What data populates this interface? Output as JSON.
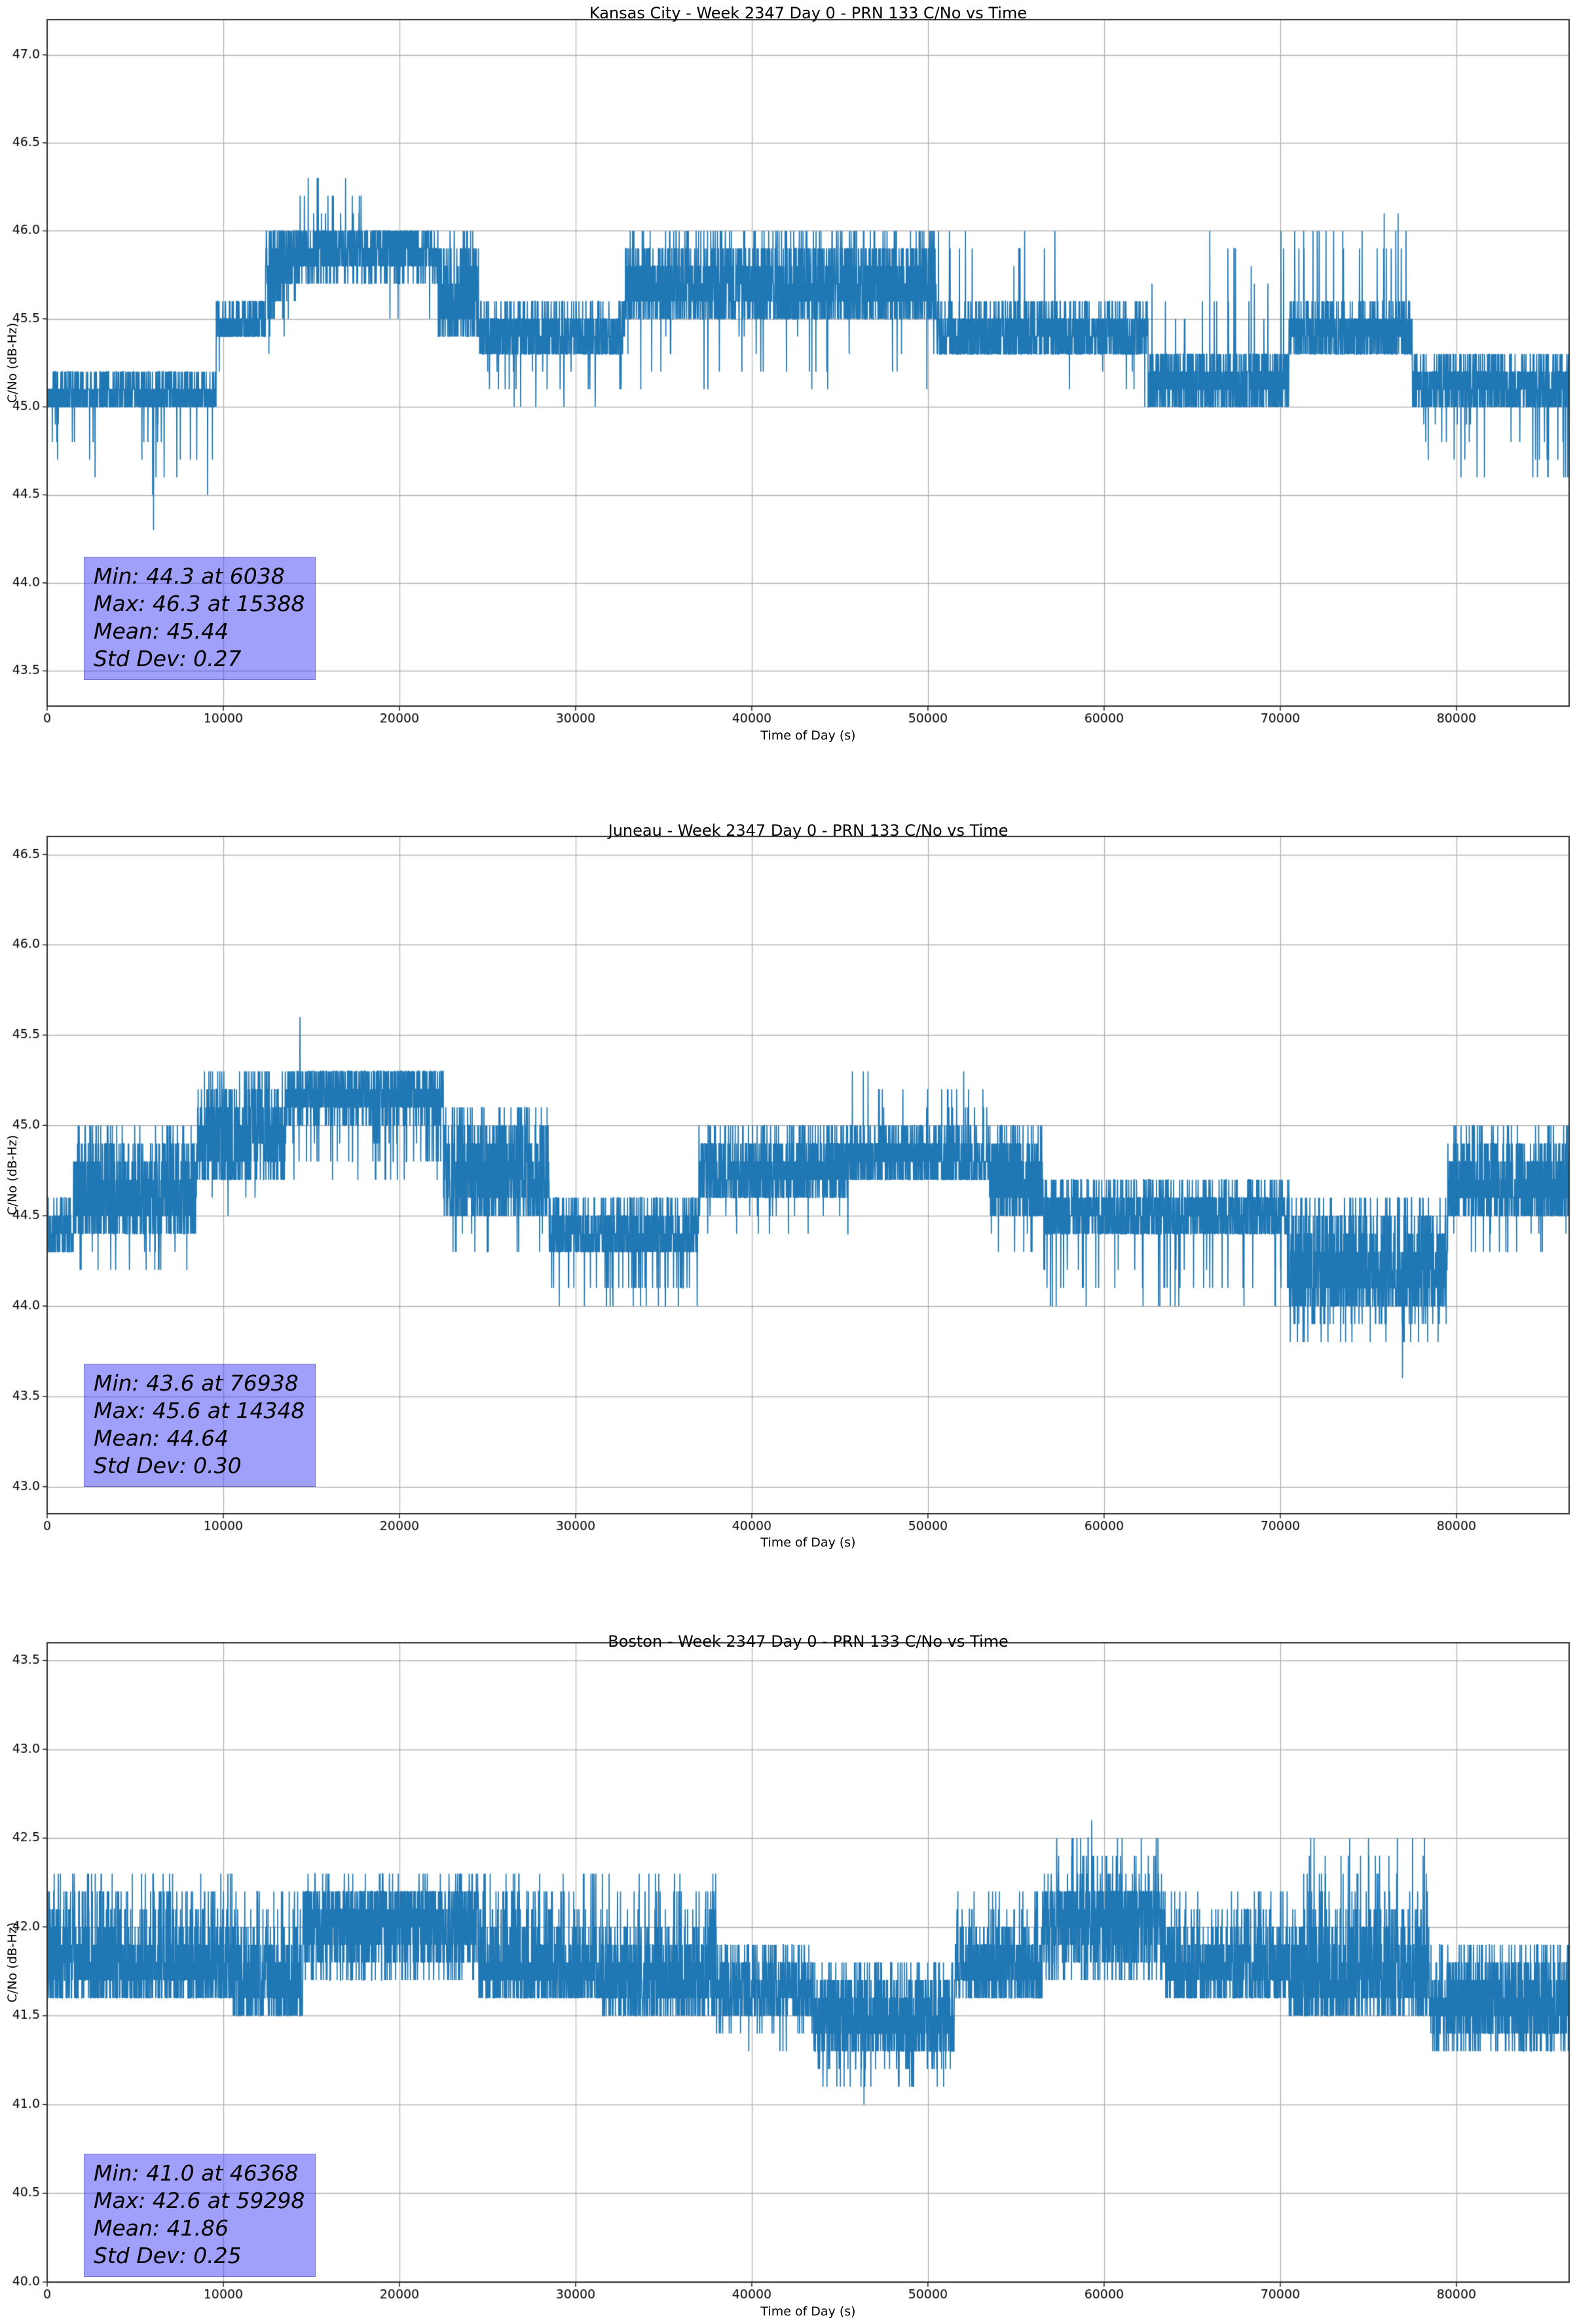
{
  "page": {
    "background": "#ffffff"
  },
  "chart_data": [
    {
      "type": "line",
      "title": "Kansas City - Week 2347 Day 0 - PRN 133 C/No vs Time",
      "xlabel": "Time of Day (s)",
      "ylabel": "C/No (dB-Hz)",
      "line_color": "#1f77b4",
      "grid": true,
      "legend": null,
      "xlim": [
        0,
        86400
      ],
      "ylim": [
        43.3,
        47.2
      ],
      "xticks": [
        0,
        10000,
        20000,
        30000,
        40000,
        50000,
        60000,
        70000,
        80000
      ],
      "yticks": [
        "43.5",
        "44.0",
        "44.5",
        "45.0",
        "45.5",
        "46.0",
        "46.5",
        "47.0"
      ],
      "stats": {
        "min": 44.3,
        "min_time_s": 6038,
        "max": 46.3,
        "max_time_s": 15388,
        "mean": 45.44,
        "std_dev": 0.27
      },
      "stats_lines": [
        "Min: 44.3 at 6038",
        "Max: 46.3 at 15388",
        "Mean: 45.44",
        "Std Dev: 0.27"
      ],
      "extremes": [
        {
          "t": 6038,
          "v": 44.3
        },
        {
          "t": 15388,
          "v": 46.3
        }
      ],
      "sample_interval_s": 10,
      "quantization_db": 0.1,
      "segments_schema": [
        "t_start",
        "t_end",
        "band_low",
        "band_high",
        "bias_high",
        "spike_prob",
        "spike_low",
        "spike_high"
      ],
      "segments": [
        [
          0,
          2600,
          45.0,
          45.2,
          0,
          0.04,
          44.6,
          44.9
        ],
        [
          2600,
          9600,
          45.0,
          45.2,
          0,
          0.025,
          44.5,
          44.9
        ],
        [
          9600,
          12400,
          45.4,
          45.6,
          0,
          0.01,
          45.2,
          45.35
        ],
        [
          12400,
          14200,
          45.5,
          46.0,
          1,
          0.02,
          45.3,
          45.5
        ],
        [
          14200,
          18400,
          45.7,
          46.0,
          1,
          0.02,
          46.05,
          46.3
        ],
        [
          18400,
          22200,
          45.7,
          46.0,
          1,
          0.015,
          45.4,
          45.6
        ],
        [
          22200,
          24500,
          45.4,
          46.0,
          0,
          0,
          0,
          0
        ],
        [
          24500,
          32800,
          45.3,
          45.6,
          0,
          0.04,
          45.0,
          45.2
        ],
        [
          32800,
          50500,
          45.5,
          46.0,
          0,
          0.015,
          45.1,
          45.4
        ],
        [
          50500,
          57500,
          45.3,
          45.6,
          0,
          0.02,
          45.8,
          46.0
        ],
        [
          57500,
          62500,
          45.3,
          45.6,
          0,
          0.01,
          45.0,
          45.2
        ],
        [
          62500,
          70500,
          45.0,
          45.35,
          0,
          0.03,
          45.5,
          46.0
        ],
        [
          70500,
          77500,
          45.3,
          45.6,
          0,
          0.03,
          45.8,
          46.1
        ],
        [
          77500,
          86400,
          45.0,
          45.3,
          0,
          0.05,
          44.6,
          44.9
        ]
      ]
    },
    {
      "type": "line",
      "title": "Juneau - Week 2347 Day 0 - PRN 133 C/No vs Time",
      "xlabel": "Time of Day (s)",
      "ylabel": "C/No (dB-Hz)",
      "line_color": "#1f77b4",
      "grid": true,
      "legend": null,
      "xlim": [
        0,
        86400
      ],
      "ylim": [
        42.85,
        46.6
      ],
      "xticks": [
        0,
        10000,
        20000,
        30000,
        40000,
        50000,
        60000,
        70000,
        80000
      ],
      "yticks": [
        "43.0",
        "43.5",
        "44.0",
        "44.5",
        "45.0",
        "45.5",
        "46.0",
        "46.5"
      ],
      "stats": {
        "min": 43.6,
        "min_time_s": 76938,
        "max": 45.6,
        "max_time_s": 14348,
        "mean": 44.64,
        "std_dev": 0.3
      },
      "stats_lines": [
        "Min: 43.6 at 76938",
        "Max: 45.6 at 14348",
        "Mean: 44.64",
        "Std Dev: 0.30"
      ],
      "extremes": [
        {
          "t": 76938,
          "v": 43.6
        },
        {
          "t": 14348,
          "v": 45.6
        }
      ],
      "sample_interval_s": 10,
      "quantization_db": 0.1,
      "segments_schema": [
        "t_start",
        "t_end",
        "band_low",
        "band_high",
        "bias_high",
        "spike_prob",
        "spike_low",
        "spike_high"
      ],
      "segments": [
        [
          0,
          1500,
          44.3,
          44.6,
          0,
          0,
          0,
          0
        ],
        [
          1500,
          8500,
          44.4,
          45.0,
          0,
          0.02,
          44.2,
          44.3
        ],
        [
          8500,
          13500,
          44.7,
          45.3,
          0,
          0.01,
          44.5,
          44.6
        ],
        [
          13500,
          22500,
          45.0,
          45.3,
          1,
          0.06,
          44.7,
          44.9
        ],
        [
          22500,
          28500,
          44.5,
          45.1,
          0,
          0.02,
          44.3,
          44.4
        ],
        [
          28500,
          37000,
          44.3,
          44.6,
          0,
          0.06,
          44.0,
          44.15
        ],
        [
          37000,
          45500,
          44.6,
          45.0,
          0,
          0.02,
          44.4,
          44.5
        ],
        [
          45500,
          53500,
          44.7,
          45.0,
          0,
          0.03,
          45.1,
          45.3
        ],
        [
          53500,
          56500,
          44.5,
          45.0,
          0,
          0.02,
          44.3,
          44.4
        ],
        [
          56500,
          70500,
          44.4,
          44.7,
          0,
          0.035,
          44.0,
          44.2
        ],
        [
          70500,
          79500,
          44.0,
          44.6,
          0,
          0.08,
          43.8,
          44.0
        ],
        [
          79500,
          86400,
          44.5,
          45.0,
          0,
          0.02,
          44.3,
          44.4
        ]
      ]
    },
    {
      "type": "line",
      "title": "Boston - Week 2347 Day 0 - PRN 133 C/No vs Time",
      "xlabel": "Time of Day (s)",
      "ylabel": "C/No (dB-Hz)",
      "line_color": "#1f77b4",
      "grid": true,
      "legend": null,
      "xlim": [
        0,
        86400
      ],
      "ylim": [
        40.0,
        43.6
      ],
      "xticks": [
        0,
        10000,
        20000,
        30000,
        40000,
        50000,
        60000,
        70000,
        80000
      ],
      "yticks": [
        "40.0",
        "40.5",
        "41.0",
        "41.5",
        "42.0",
        "42.5",
        "43.0",
        "43.5"
      ],
      "stats": {
        "min": 41.0,
        "min_time_s": 46368,
        "max": 42.6,
        "max_time_s": 59298,
        "mean": 41.86,
        "std_dev": 0.25
      },
      "stats_lines": [
        "Min: 41.0 at 46368",
        "Max: 42.6 at 59298",
        "Mean: 41.86",
        "Std Dev: 0.25"
      ],
      "extremes": [
        {
          "t": 46368,
          "v": 41.0
        },
        {
          "t": 59298,
          "v": 42.6
        }
      ],
      "sample_interval_s": 10,
      "quantization_db": 0.1,
      "segments_schema": [
        "t_start",
        "t_end",
        "band_low",
        "band_high",
        "bias_high",
        "spike_prob",
        "spike_low",
        "spike_high"
      ],
      "segments": [
        [
          0,
          10500,
          41.6,
          42.0,
          0,
          0.14,
          42.05,
          42.3
        ],
        [
          10500,
          14500,
          41.5,
          42.0,
          0,
          0.05,
          42.05,
          42.2
        ],
        [
          14500,
          24500,
          41.7,
          42.2,
          1,
          0.04,
          42.25,
          42.35
        ],
        [
          24500,
          31500,
          41.6,
          42.0,
          0,
          0.1,
          42.05,
          42.3
        ],
        [
          31500,
          38000,
          41.5,
          42.0,
          0,
          0.07,
          42.05,
          42.3
        ],
        [
          38000,
          43500,
          41.5,
          41.9,
          0,
          0.05,
          41.3,
          41.45
        ],
        [
          43500,
          51500,
          41.3,
          41.8,
          0,
          0.05,
          41.1,
          41.25
        ],
        [
          51500,
          56500,
          41.6,
          42.0,
          0,
          0.07,
          42.05,
          42.25
        ],
        [
          56500,
          63500,
          41.7,
          42.2,
          1,
          0.09,
          42.25,
          42.5
        ],
        [
          63500,
          70500,
          41.6,
          42.0,
          0,
          0.06,
          42.05,
          42.2
        ],
        [
          70500,
          78500,
          41.5,
          42.1,
          0,
          0.06,
          42.15,
          42.5
        ],
        [
          78500,
          86400,
          41.4,
          41.9,
          0,
          0.08,
          41.25,
          41.35
        ]
      ]
    }
  ]
}
